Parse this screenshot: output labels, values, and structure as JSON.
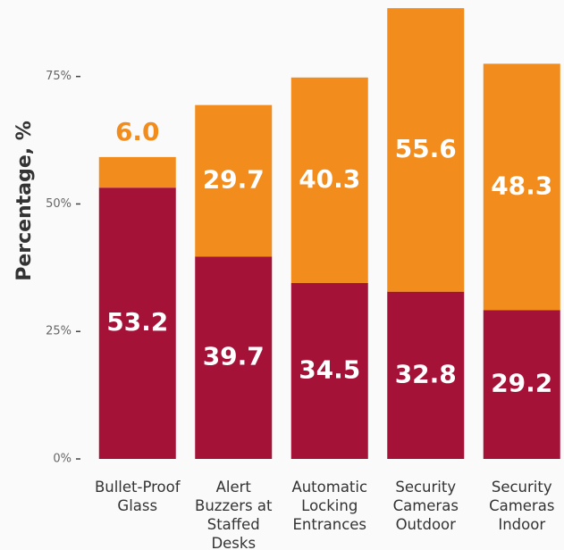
{
  "chart_data": {
    "type": "stacked_bar",
    "y_label": "Percentage, %",
    "categories": [
      "Bullet-Proof Glass",
      "Alert Buzzers at Staffed Desks",
      "Automatic Locking Entrances",
      "Security Cameras Outdoor",
      "Security Cameras Indoor"
    ],
    "series": [
      {
        "color": "#a51237",
        "values": [
          53.2,
          39.7,
          34.5,
          32.8,
          29.2
        ],
        "value_labels": [
          "53.2",
          "39.7",
          "34.5",
          "32.8",
          "29.2"
        ]
      },
      {
        "color": "#f28c1c",
        "values": [
          6,
          29.7,
          40.3,
          55.6,
          48.3
        ],
        "value_labels": [
          "6.0",
          "29.7",
          "40.3",
          "55.6",
          "48.3"
        ]
      }
    ],
    "ylim": [
      0,
      90
    ],
    "yticks": [
      {
        "value": 0,
        "label": "0%"
      },
      {
        "value": 25,
        "label": "25%"
      },
      {
        "value": 50,
        "label": "50%"
      },
      {
        "value": 75,
        "label": "75%"
      }
    ]
  }
}
